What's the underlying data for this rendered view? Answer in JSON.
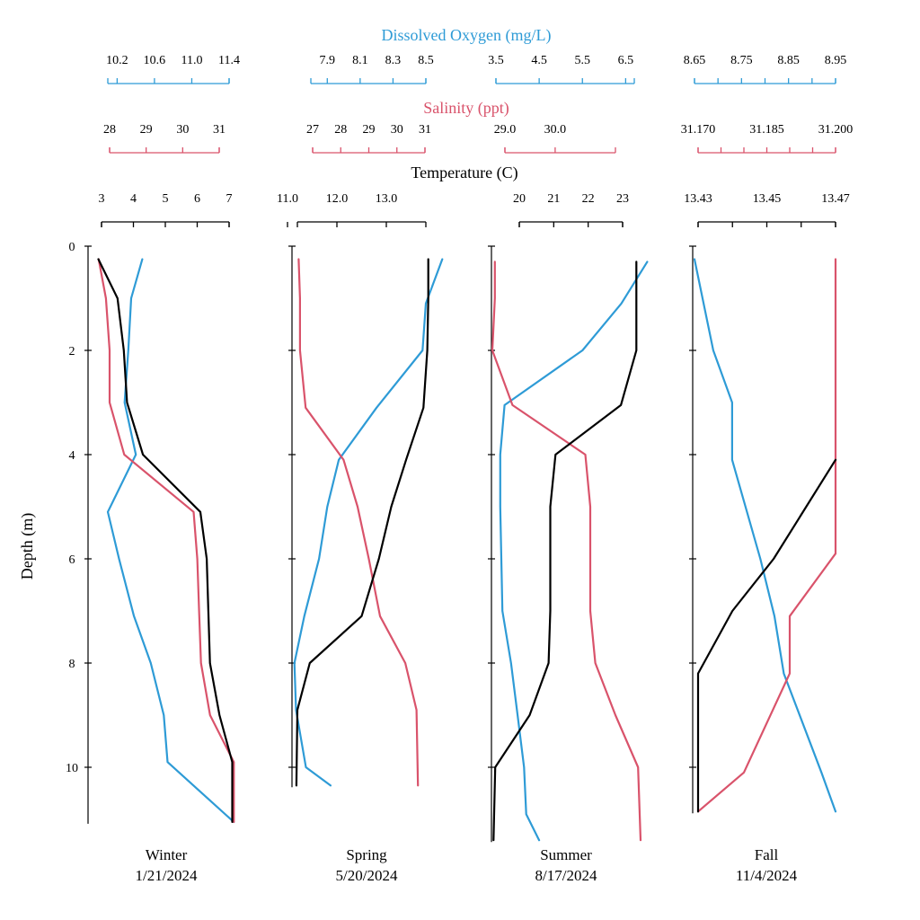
{
  "colors": {
    "oxygen": "#2E9BD6",
    "salinity": "#D9536B",
    "temperature": "#000000"
  },
  "chart_data": {
    "type": "line",
    "axis_titles": {
      "oxygen": "Dissolved Oxygen (mg/L)",
      "salinity": "Salinity (ppt)",
      "temperature": "Temperature (C)",
      "depth": "Depth (m)"
    },
    "depth_axis": {
      "range": [
        0,
        11.5
      ],
      "ticks": [
        0,
        2,
        4,
        6,
        8,
        10
      ],
      "inverted": true
    },
    "panels": [
      {
        "season": "Winter",
        "date": "1/21/2024",
        "oxygen": {
          "range": [
            10.1,
            11.4
          ],
          "ticks": [
            10.2,
            10.6,
            11.0,
            11.4
          ],
          "tick_labels": [
            "10.2",
            "10.6",
            "11.0",
            "11.4"
          ],
          "points": [
            [
              10.47,
              0.25
            ],
            [
              10.35,
              1.0
            ],
            [
              10.32,
              2.0
            ],
            [
              10.28,
              3.0
            ],
            [
              10.4,
              4.0
            ],
            [
              10.1,
              5.1
            ],
            [
              10.22,
              6.0
            ],
            [
              10.38,
              7.1
            ],
            [
              10.56,
              8.0
            ],
            [
              10.7,
              9.0
            ],
            [
              10.74,
              9.9
            ],
            [
              11.45,
              11.05
            ]
          ]
        },
        "salinity": {
          "range": [
            28,
            31
          ],
          "ticks": [
            28,
            29,
            30,
            31
          ],
          "tick_labels": [
            "28",
            "29",
            "30",
            "31"
          ],
          "points": [
            [
              27.7,
              0.25
            ],
            [
              27.9,
              1.0
            ],
            [
              28.0,
              2.0
            ],
            [
              28.0,
              3.0
            ],
            [
              28.4,
              4.0
            ],
            [
              30.3,
              5.1
            ],
            [
              30.4,
              6.0
            ],
            [
              30.45,
              7.0
            ],
            [
              30.5,
              8.0
            ],
            [
              30.75,
              9.0
            ],
            [
              31.4,
              9.9
            ],
            [
              31.4,
              11.05
            ]
          ]
        },
        "temperature": {
          "range": [
            3,
            7
          ],
          "ticks": [
            3,
            4,
            5,
            6,
            7
          ],
          "tick_labels": [
            "3",
            "4",
            "5",
            "6",
            "7"
          ],
          "points": [
            [
              2.9,
              0.25
            ],
            [
              3.5,
              1.0
            ],
            [
              3.7,
              2.0
            ],
            [
              3.8,
              3.0
            ],
            [
              4.3,
              4.0
            ],
            [
              6.1,
              5.1
            ],
            [
              6.3,
              6.0
            ],
            [
              6.35,
              7.0
            ],
            [
              6.4,
              8.0
            ],
            [
              6.7,
              9.0
            ],
            [
              7.1,
              9.9
            ],
            [
              7.1,
              11.05
            ]
          ]
        }
      },
      {
        "season": "Spring",
        "date": "5/20/2024",
        "oxygen": {
          "range": [
            7.8,
            8.5
          ],
          "ticks": [
            7.9,
            8.1,
            8.3,
            8.5
          ],
          "tick_labels": [
            "7.9",
            "8.1",
            "8.3",
            "8.5"
          ],
          "points": [
            [
              8.6,
              0.25
            ],
            [
              8.5,
              1.1
            ],
            [
              8.48,
              2.0
            ],
            [
              8.2,
              3.1
            ],
            [
              7.97,
              4.1
            ],
            [
              7.9,
              5.0
            ],
            [
              7.85,
              6.0
            ],
            [
              7.76,
              7.1
            ],
            [
              7.7,
              8.0
            ],
            [
              7.71,
              8.9
            ],
            [
              7.77,
              10.0
            ],
            [
              7.92,
              10.35
            ]
          ]
        },
        "salinity": {
          "range": [
            27,
            31
          ],
          "ticks": [
            27,
            28,
            29,
            30,
            31
          ],
          "tick_labels": [
            "27",
            "28",
            "29",
            "30",
            "31"
          ],
          "points": [
            [
              26.5,
              0.25
            ],
            [
              26.55,
              1.0
            ],
            [
              26.55,
              2.0
            ],
            [
              26.75,
              3.1
            ],
            [
              28.1,
              4.1
            ],
            [
              28.6,
              5.0
            ],
            [
              29.0,
              6.0
            ],
            [
              29.4,
              7.1
            ],
            [
              30.3,
              8.0
            ],
            [
              30.7,
              8.9
            ],
            [
              30.75,
              10.35
            ]
          ]
        },
        "temperature": {
          "range": [
            11.2,
            13.8
          ],
          "ticks": [
            11.0,
            12.0,
            13.0
          ],
          "tick_labels": [
            "11.0",
            "12.0",
            "13.0"
          ],
          "points": [
            [
              13.85,
              0.25
            ],
            [
              13.85,
              1.0
            ],
            [
              13.83,
              2.0
            ],
            [
              13.75,
              3.1
            ],
            [
              13.4,
              4.1
            ],
            [
              13.1,
              5.0
            ],
            [
              12.85,
              6.0
            ],
            [
              12.5,
              7.1
            ],
            [
              11.45,
              8.0
            ],
            [
              11.2,
              8.9
            ],
            [
              11.18,
              10.35
            ]
          ]
        }
      },
      {
        "season": "Summer",
        "date": "8/17/2024",
        "oxygen": {
          "range": [
            3.5,
            6.7
          ],
          "ticks": [
            3.5,
            4.5,
            5.5,
            6.5
          ],
          "tick_labels": [
            "3.5",
            "4.5",
            "5.5",
            "6.5"
          ],
          "points": [
            [
              7.0,
              0.3
            ],
            [
              6.4,
              1.1
            ],
            [
              5.5,
              2.0
            ],
            [
              3.7,
              3.05
            ],
            [
              3.6,
              4.0
            ],
            [
              3.6,
              5.0
            ],
            [
              3.65,
              7.0
            ],
            [
              3.85,
              8.0
            ],
            [
              4.0,
              9.0
            ],
            [
              4.15,
              10.0
            ],
            [
              4.2,
              10.9
            ],
            [
              4.5,
              11.4
            ]
          ]
        },
        "salinity": {
          "range": [
            29.0,
            31.2
          ],
          "ticks": [
            29.0,
            30.0
          ],
          "tick_labels": [
            "29.0",
            "30.0"
          ],
          "points": [
            [
              28.8,
              0.3
            ],
            [
              28.8,
              1.0
            ],
            [
              28.75,
              2.0
            ],
            [
              29.15,
              3.05
            ],
            [
              30.6,
              4.0
            ],
            [
              30.7,
              5.0
            ],
            [
              30.7,
              7.0
            ],
            [
              30.8,
              8.0
            ],
            [
              31.2,
              9.0
            ],
            [
              31.65,
              10.0
            ],
            [
              31.7,
              11.4
            ]
          ]
        },
        "temperature": {
          "range": [
            20,
            23
          ],
          "ticks": [
            20,
            21,
            22,
            23
          ],
          "tick_labels": [
            "20",
            "21",
            "22",
            "23"
          ],
          "points": [
            [
              23.4,
              0.3
            ],
            [
              23.4,
              1.0
            ],
            [
              23.4,
              2.0
            ],
            [
              22.95,
              3.05
            ],
            [
              21.05,
              4.0
            ],
            [
              20.9,
              5.0
            ],
            [
              20.9,
              7.0
            ],
            [
              20.85,
              8.0
            ],
            [
              20.3,
              9.0
            ],
            [
              19.3,
              10.0
            ],
            [
              19.25,
              11.4
            ]
          ]
        }
      },
      {
        "season": "Fall",
        "date": "11/4/2024",
        "oxygen": {
          "range": [
            8.65,
            8.95
          ],
          "ticks": [
            8.65,
            8.7,
            8.75,
            8.8,
            8.85,
            8.9,
            8.95
          ],
          "tick_labels": [
            "8.65",
            "",
            "8.75",
            "",
            "8.85",
            "",
            "8.95"
          ],
          "points": [
            [
              8.65,
              0.25
            ],
            [
              8.69,
              2.0
            ],
            [
              8.73,
              3.0
            ],
            [
              8.73,
              4.1
            ],
            [
              8.79,
              6.0
            ],
            [
              8.82,
              7.1
            ],
            [
              8.84,
              8.2
            ],
            [
              8.92,
              10.1
            ],
            [
              8.95,
              10.85
            ]
          ]
        },
        "salinity": {
          "range": [
            31.17,
            31.2
          ],
          "ticks": [
            31.17,
            31.175,
            31.18,
            31.185,
            31.19,
            31.195,
            31.2
          ],
          "tick_labels": [
            "31.170",
            "",
            "",
            "31.185",
            "",
            "",
            "31.200"
          ],
          "points": [
            [
              31.2,
              0.25
            ],
            [
              31.2,
              2.0
            ],
            [
              31.2,
              4.0
            ],
            [
              31.2,
              5.9
            ],
            [
              31.19,
              7.1
            ],
            [
              31.19,
              8.2
            ],
            [
              31.18,
              10.1
            ],
            [
              31.17,
              10.85
            ]
          ]
        },
        "temperature": {
          "range": [
            13.43,
            13.47
          ],
          "ticks": [
            13.43,
            13.44,
            13.45,
            13.46,
            13.47
          ],
          "tick_labels": [
            "13.43",
            "",
            "13.45",
            "",
            "13.47"
          ],
          "points": [
            [
              13.47,
              4.1
            ],
            [
              13.452,
              6.0
            ],
            [
              13.44,
              7.0
            ],
            [
              13.43,
              8.2
            ],
            [
              13.43,
              10.85
            ]
          ]
        }
      }
    ]
  }
}
